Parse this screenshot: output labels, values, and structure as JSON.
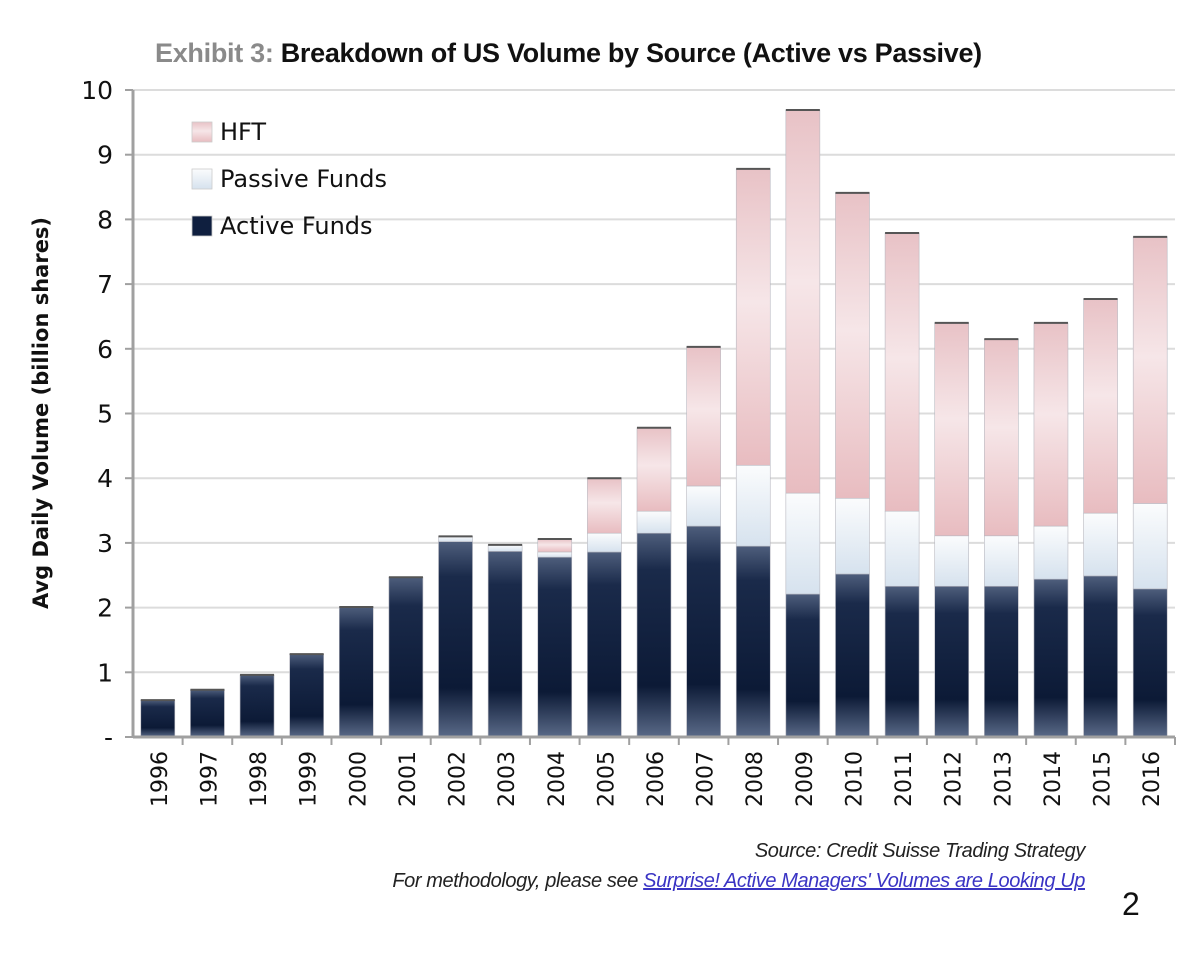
{
  "title": {
    "exhibit_label": "Exhibit 3:",
    "main": "Breakdown of US Volume by Source (Active vs Passive)"
  },
  "footnote": {
    "source": "Source: Credit Suisse Trading Strategy",
    "methodology_prefix": "For methodology, please see ",
    "methodology_link": "Surprise! Active Managers' Volumes are Looking Up"
  },
  "page_number": "2",
  "colors": {
    "active": "#0f1f3f",
    "passive": "#e4ecf4",
    "hft": "#e9c3c7",
    "grid": "#dcdcdc",
    "axis": "#a0a0a0",
    "link": "#3a34c4"
  },
  "chart_data": {
    "type": "bar",
    "stacked": true,
    "title": "Exhibit 3: Breakdown of US Volume by Source (Active vs Passive)",
    "xlabel": "",
    "ylabel": "Avg Daily Volume (billion shares)",
    "ylim": [
      0,
      10
    ],
    "yticks": [
      0,
      1,
      2,
      3,
      4,
      5,
      6,
      7,
      8,
      9,
      10
    ],
    "ytick_labels": [
      "-",
      "1",
      "2",
      "3",
      "4",
      "5",
      "6",
      "7",
      "8",
      "9",
      "10"
    ],
    "grid": true,
    "legend_position": "top-left",
    "categories": [
      "1996",
      "1997",
      "1998",
      "1999",
      "2000",
      "2001",
      "2002",
      "2003",
      "2004",
      "2005",
      "2006",
      "2007",
      "2008",
      "2009",
      "2010",
      "2011",
      "2012",
      "2013",
      "2014",
      "2015",
      "2016"
    ],
    "series": [
      {
        "name": "Active Funds",
        "values": [
          0.57,
          0.73,
          0.96,
          1.28,
          2.01,
          2.47,
          3.02,
          2.87,
          2.78,
          2.86,
          3.15,
          3.26,
          2.95,
          2.21,
          2.52,
          2.33,
          2.33,
          2.33,
          2.44,
          2.49,
          2.29
        ]
      },
      {
        "name": "Passive Funds",
        "values": [
          0.0,
          0.0,
          0.0,
          0.0,
          0.0,
          0.0,
          0.08,
          0.1,
          0.08,
          0.29,
          0.34,
          0.62,
          1.25,
          1.56,
          1.17,
          1.16,
          0.78,
          0.78,
          0.82,
          0.97,
          1.32
        ]
      },
      {
        "name": "HFT",
        "values": [
          0.0,
          0.0,
          0.0,
          0.0,
          0.0,
          0.0,
          0.0,
          0.0,
          0.2,
          0.85,
          1.29,
          2.15,
          4.58,
          5.92,
          4.72,
          4.3,
          3.29,
          3.04,
          3.14,
          3.31,
          4.12
        ]
      }
    ],
    "legend": [
      "HFT",
      "Passive Funds",
      "Active Funds"
    ]
  }
}
